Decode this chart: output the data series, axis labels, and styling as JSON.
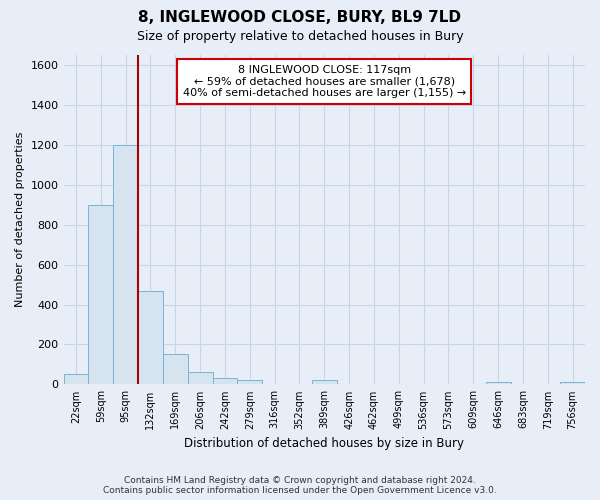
{
  "title": "8, INGLEWOOD CLOSE, BURY, BL9 7LD",
  "subtitle": "Size of property relative to detached houses in Bury",
  "xlabel": "Distribution of detached houses by size in Bury",
  "ylabel": "Number of detached properties",
  "footer_line1": "Contains HM Land Registry data © Crown copyright and database right 2024.",
  "footer_line2": "Contains public sector information licensed under the Open Government Licence v3.0.",
  "categories": [
    "22sqm",
    "59sqm",
    "95sqm",
    "132sqm",
    "169sqm",
    "206sqm",
    "242sqm",
    "279sqm",
    "316sqm",
    "352sqm",
    "389sqm",
    "426sqm",
    "462sqm",
    "499sqm",
    "536sqm",
    "573sqm",
    "609sqm",
    "646sqm",
    "683sqm",
    "719sqm",
    "756sqm"
  ],
  "bar_values": [
    50,
    900,
    1200,
    470,
    150,
    60,
    30,
    20,
    0,
    0,
    20,
    0,
    0,
    0,
    0,
    0,
    0,
    10,
    0,
    0,
    10
  ],
  "bar_color": "#d6e4f0",
  "bar_edge_color": "#7ab3d4",
  "ylim": [
    0,
    1650
  ],
  "yticks": [
    0,
    200,
    400,
    600,
    800,
    1000,
    1200,
    1400,
    1600
  ],
  "property_label": "8 INGLEWOOD CLOSE: 117sqm",
  "annotation_line1": "← 59% of detached houses are smaller (1,678)",
  "annotation_line2": "40% of semi-detached houses are larger (1,155) →",
  "bg_color": "#e8eef8",
  "grid_color": "#c8d4e8",
  "annotation_box_color": "#ffffff",
  "annotation_box_edge_color": "#cc0000",
  "vline_color": "#aa0000"
}
